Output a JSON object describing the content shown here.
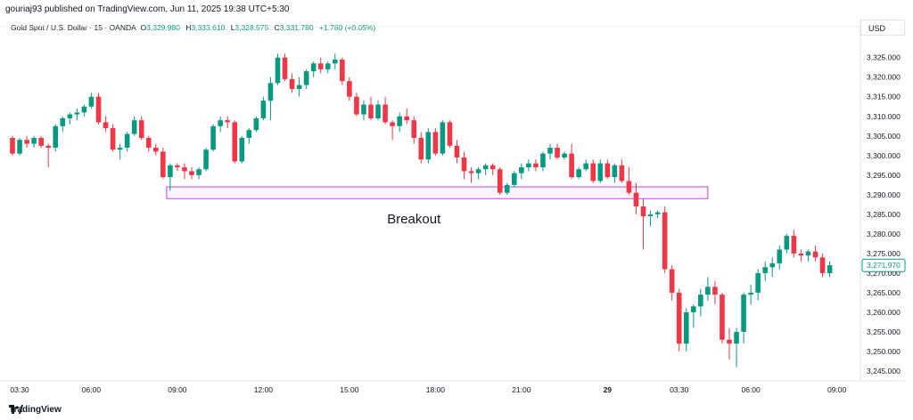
{
  "header": {
    "publisher": "gouriaj93 published on TradingView.com, Jun 11, 2025 19:38 UTC+5:30"
  },
  "symbol": {
    "name": "Gold Spot / U.S. Dollar · 15 · OANDA",
    "ohlc": [
      {
        "label": "O",
        "value": "3,329.980"
      },
      {
        "label": "H",
        "value": "3,333.610"
      },
      {
        "label": "L",
        "value": "3,328.575"
      },
      {
        "label": "C",
        "value": "3,331.780"
      }
    ],
    "change": "+1.780 (+0.05%)"
  },
  "currency": "USD",
  "footer": {
    "brand": "TradingView"
  },
  "colors": {
    "up": "#089981",
    "down": "#f23645",
    "zone": "#c04bd0",
    "price_tag": "#089981"
  },
  "chart_data": {
    "type": "candlestick",
    "y_ticks": [
      "3,325.000",
      "3,320.000",
      "3,315.000",
      "3,310.000",
      "3,305.000",
      "3,300.000",
      "3,295.000",
      "3,290.000",
      "3,285.000",
      "3,280.000",
      "3,275.000",
      "3,270.000",
      "3,265.000",
      "3,260.000",
      "3,255.000",
      "3,250.000",
      "3,245.000"
    ],
    "y_tick_values": [
      3325,
      3320,
      3315,
      3310,
      3305,
      3300,
      3295,
      3290,
      3285,
      3280,
      3275,
      3270,
      3265,
      3260,
      3255,
      3250,
      3245
    ],
    "ylim": [
      3242.5,
      3328
    ],
    "x_ticks": [
      {
        "label": "03:30",
        "bold": false,
        "index": 1
      },
      {
        "label": "06:00",
        "bold": false,
        "index": 11
      },
      {
        "label": "09:00",
        "bold": false,
        "index": 23
      },
      {
        "label": "12:00",
        "bold": false,
        "index": 35
      },
      {
        "label": "15:00",
        "bold": false,
        "index": 47
      },
      {
        "label": "18:00",
        "bold": false,
        "index": 59
      },
      {
        "label": "21:00",
        "bold": false,
        "index": 71
      },
      {
        "label": "29",
        "bold": true,
        "index": 83
      },
      {
        "label": "03:30",
        "bold": false,
        "index": 93
      },
      {
        "label": "06:00",
        "bold": false,
        "index": 103
      },
      {
        "label": "09:00",
        "bold": false,
        "index": 115
      }
    ],
    "last_price": {
      "label": "3,271.970",
      "value": 3271.97
    },
    "annotation": {
      "text": "Breakout",
      "x_index": 56,
      "y": 3285
    },
    "zone": {
      "x_start_index": 21.5,
      "x_end_index": 97,
      "y_top": 3292,
      "y_bottom": 3289
    },
    "candles": [
      [
        3304.5,
        3305,
        3300,
        3300.5
      ],
      [
        3300.5,
        3304.5,
        3300,
        3304
      ],
      [
        3304,
        3305,
        3302,
        3303
      ],
      [
        3303,
        3305,
        3302,
        3304.5
      ],
      [
        3304.5,
        3305,
        3302,
        3302.5
      ],
      [
        3302.5,
        3303,
        3297,
        3302
      ],
      [
        3302,
        3308,
        3301,
        3307.5
      ],
      [
        3307.5,
        3310,
        3306,
        3309.5
      ],
      [
        3309.5,
        3311,
        3308,
        3310.5
      ],
      [
        3310.5,
        3312,
        3309,
        3311
      ],
      [
        3311,
        3313,
        3310,
        3312.5
      ],
      [
        3312.5,
        3316,
        3312,
        3315
      ],
      [
        3315,
        3316,
        3308,
        3308.5
      ],
      [
        3308.5,
        3310,
        3306,
        3307
      ],
      [
        3307,
        3308,
        3301,
        3301.5
      ],
      [
        3301.5,
        3303,
        3299,
        3302
      ],
      [
        3302,
        3306,
        3301,
        3305.5
      ],
      [
        3305.5,
        3310,
        3305,
        3309
      ],
      [
        3309,
        3310,
        3304,
        3304.5
      ],
      [
        3304.5,
        3305,
        3301,
        3302
      ],
      [
        3302,
        3303,
        3300,
        3301
      ],
      [
        3301,
        3302,
        3294,
        3294.5
      ],
      [
        3294.5,
        3298,
        3291,
        3297.5
      ],
      [
        3297.5,
        3298,
        3296,
        3297
      ],
      [
        3297,
        3298,
        3294,
        3296
      ],
      [
        3296,
        3297,
        3294,
        3295
      ],
      [
        3295,
        3297,
        3294,
        3296.5
      ],
      [
        3296.5,
        3302,
        3296,
        3301.5
      ],
      [
        3301.5,
        3308,
        3301,
        3307.5
      ],
      [
        3307.5,
        3310,
        3306,
        3309
      ],
      [
        3309,
        3310,
        3307,
        3308.5
      ],
      [
        3308.5,
        3309,
        3298,
        3298.5
      ],
      [
        3298.5,
        3305,
        3298,
        3304.5
      ],
      [
        3304.5,
        3307,
        3303,
        3306.5
      ],
      [
        3306.5,
        3310,
        3306,
        3309.5
      ],
      [
        3309.5,
        3315,
        3309,
        3314
      ],
      [
        3314,
        3320,
        3309,
        3318.5
      ],
      [
        3318.5,
        3326,
        3318,
        3325
      ],
      [
        3325,
        3326,
        3319,
        3319.5
      ],
      [
        3319.5,
        3321,
        3316,
        3317
      ],
      [
        3317,
        3320,
        3315,
        3318
      ],
      [
        3318,
        3322,
        3317,
        3321.5
      ],
      [
        3321.5,
        3324,
        3320,
        3323.5
      ],
      [
        3323.5,
        3325,
        3321,
        3322
      ],
      [
        3322,
        3324,
        3321,
        3323.5
      ],
      [
        3323.5,
        3326,
        3322,
        3324.5
      ],
      [
        3324.5,
        3325,
        3318,
        3319
      ],
      [
        3319,
        3320,
        3314,
        3315
      ],
      [
        3315,
        3316,
        3310,
        3310.5
      ],
      [
        3310.5,
        3314,
        3309,
        3313
      ],
      [
        3313,
        3315,
        3309,
        3309.5
      ],
      [
        3309.5,
        3314,
        3309,
        3313
      ],
      [
        3313,
        3315,
        3308,
        3308.5
      ],
      [
        3308.5,
        3309,
        3304,
        3307.5
      ],
      [
        3307.5,
        3311,
        3306,
        3310
      ],
      [
        3310,
        3312,
        3308,
        3309
      ],
      [
        3309,
        3310,
        3303,
        3304.5
      ],
      [
        3304.5,
        3306,
        3298,
        3299
      ],
      [
        3299,
        3307,
        3298,
        3306
      ],
      [
        3306,
        3307,
        3300,
        3300.5
      ],
      [
        3300.5,
        3309,
        3300,
        3308.5
      ],
      [
        3308.5,
        3309,
        3302,
        3302.5
      ],
      [
        3302.5,
        3304,
        3298,
        3299.5
      ],
      [
        3299.5,
        3301,
        3294,
        3296
      ],
      [
        3296,
        3297,
        3293,
        3295.5
      ],
      [
        3295.5,
        3297,
        3294,
        3296.5
      ],
      [
        3296.5,
        3298,
        3295,
        3297.5
      ],
      [
        3297.5,
        3298,
        3295,
        3296.5
      ],
      [
        3296.5,
        3297,
        3290,
        3290.5
      ],
      [
        3290.5,
        3293,
        3290,
        3292.5
      ],
      [
        3292.5,
        3296,
        3292,
        3295.5
      ],
      [
        3295.5,
        3298,
        3294,
        3297
      ],
      [
        3297,
        3299,
        3296,
        3298
      ],
      [
        3298,
        3299,
        3296,
        3297
      ],
      [
        3297,
        3301,
        3296,
        3300.5
      ],
      [
        3300.5,
        3303,
        3299,
        3302
      ],
      [
        3302,
        3303,
        3299,
        3299.5
      ],
      [
        3299.5,
        3301,
        3299,
        3300.5
      ],
      [
        3300.5,
        3303,
        3294,
        3294.5
      ],
      [
        3294.5,
        3297,
        3294,
        3296.5
      ],
      [
        3296.5,
        3299,
        3296,
        3298
      ],
      [
        3298,
        3299,
        3293,
        3293.5
      ],
      [
        3293.5,
        3299,
        3293,
        3298
      ],
      [
        3298,
        3299,
        3294,
        3294.5
      ],
      [
        3294.5,
        3298,
        3293,
        3297.5
      ],
      [
        3297.5,
        3299,
        3293,
        3293.5
      ],
      [
        3293.5,
        3297,
        3290,
        3290.5
      ],
      [
        3290.5,
        3293,
        3285,
        3287
      ],
      [
        3287,
        3289,
        3276,
        3284.5
      ],
      [
        3284.5,
        3286,
        3282,
        3285
      ],
      [
        3285,
        3286,
        3284,
        3285.5
      ],
      [
        3285.5,
        3287,
        3270,
        3271
      ],
      [
        3271,
        3272,
        3263,
        3265
      ],
      [
        3265,
        3266,
        3250,
        3252
      ],
      [
        3252,
        3261,
        3250,
        3260
      ],
      [
        3260,
        3262,
        3256,
        3261.5
      ],
      [
        3261.5,
        3266,
        3259,
        3264.5
      ],
      [
        3264.5,
        3269,
        3263,
        3266.5
      ],
      [
        3266.5,
        3268,
        3262,
        3264.5
      ],
      [
        3264.5,
        3265,
        3252,
        3253
      ],
      [
        3253,
        3256,
        3248,
        3252
      ],
      [
        3252,
        3256,
        3246,
        3255
      ],
      [
        3255,
        3265,
        3252,
        3264.5
      ],
      [
        3264.5,
        3267,
        3262,
        3265
      ],
      [
        3265,
        3271,
        3263,
        3270
      ],
      [
        3270,
        3273,
        3268,
        3271.5
      ],
      [
        3271.5,
        3274,
        3269,
        3272.5
      ],
      [
        3272.5,
        3277,
        3271,
        3276
      ],
      [
        3276,
        3280,
        3275,
        3279.5
      ],
      [
        3279.5,
        3281,
        3274,
        3275
      ],
      [
        3275,
        3276,
        3273,
        3274.5
      ],
      [
        3274.5,
        3276,
        3273,
        3275.5
      ],
      [
        3275.5,
        3277,
        3273,
        3274
      ],
      [
        3274,
        3275,
        3269,
        3270
      ],
      [
        3270,
        3273,
        3269,
        3272
      ]
    ]
  }
}
